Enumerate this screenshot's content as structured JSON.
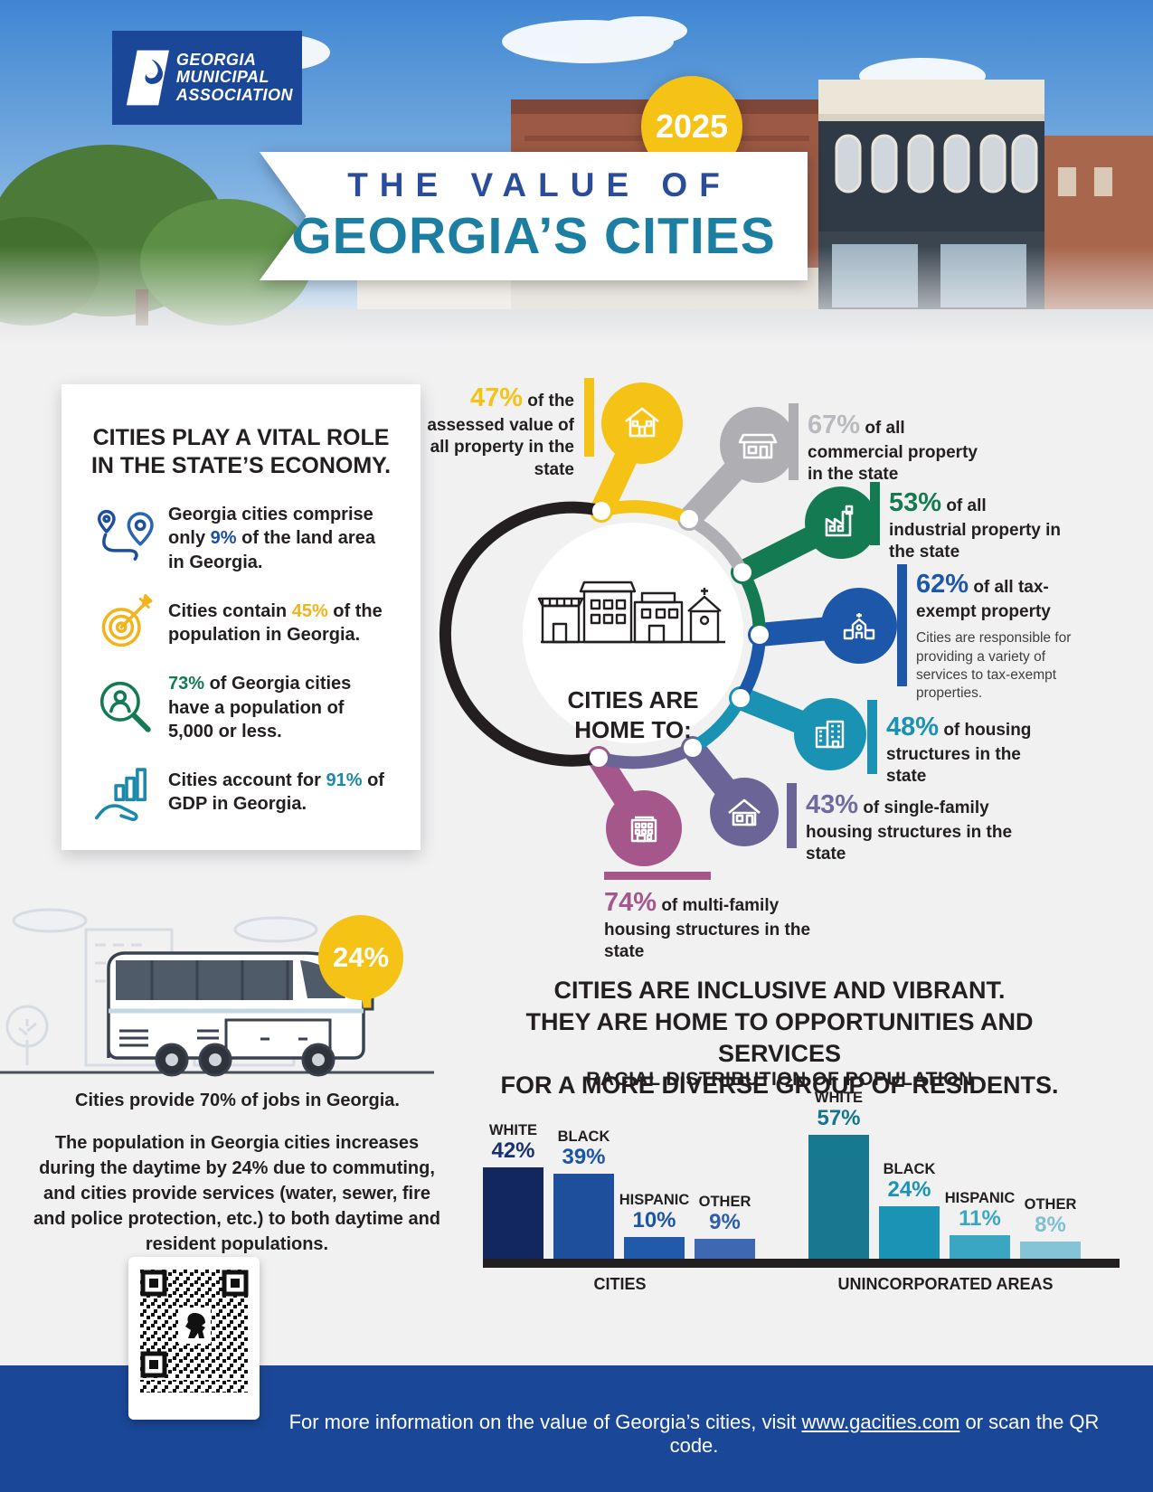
{
  "palette": {
    "brand_blue": "#1A4797",
    "yellow": "#F5C216",
    "gray": "#AFAFB3",
    "green": "#147A52",
    "blue": "#1D57A9",
    "teal": "#1992B4",
    "purple": "#6A6596",
    "mauve": "#A5578C",
    "ink": "#231F20",
    "background": "#F1F1F2",
    "title_teal": "#1C7FA2",
    "title_blue": "#2A4D9B"
  },
  "header": {
    "logo_lines": [
      "GEORGIA",
      "MUNICIPAL",
      "ASSOCIATION"
    ],
    "year_badge": "2025",
    "title_top": "THE VALUE OF",
    "title_main": "GEORGIA’S CITIES"
  },
  "vital_card": {
    "title_line1": "CITIES PLAY A VITAL ROLE",
    "title_line2": "IN THE STATE’S ECONOMY.",
    "items": [
      {
        "icon": "map-pins-icon",
        "color": "#1D4F9C",
        "pre": "Georgia cities comprise only ",
        "value": "9%",
        "post": " of the land area in Georgia."
      },
      {
        "icon": "target-icon",
        "color": "#F2B31B",
        "pre": "Cities contain ",
        "value": "45%",
        "post": " of the population in Georgia."
      },
      {
        "icon": "magnifier-person-icon",
        "color": "#147A52",
        "pre": "",
        "value": "73%",
        "post": " of Georgia cities have a population of 5,000 or less."
      },
      {
        "icon": "hand-chart-icon",
        "color": "#1B89A9",
        "pre": "Cities account for ",
        "value": "91%",
        "post": " of GDP in Georgia."
      }
    ]
  },
  "home_to": {
    "center_line1": "CITIES ARE",
    "center_line2": "HOME TO:",
    "bubbles": [
      {
        "icon": "house-icon",
        "value": "47%",
        "text": " of the assessed value of all property in the state",
        "color": "#F5C216"
      },
      {
        "icon": "store-icon",
        "value": "67%",
        "text": " of all commercial property in the state",
        "color": "#AFAFB3"
      },
      {
        "icon": "factory-icon",
        "value": "53%",
        "text": " of all industrial property in the state",
        "color": "#147A52"
      },
      {
        "icon": "church-icon",
        "value": "62%",
        "text": " of all tax-exempt property",
        "subtext": "Cities are responsible for providing a variety of services to tax-exempt properties.",
        "color": "#1D57A9"
      },
      {
        "icon": "apartment-icon",
        "value": "48%",
        "text": " of housing structures in the state",
        "color": "#1992B4"
      },
      {
        "icon": "single-family-house-icon",
        "value": "43%",
        "text": " of single-family housing structures in the state",
        "color": "#6A6596"
      },
      {
        "icon": "multi-family-building-icon",
        "value": "74%",
        "text": " of multi-family housing structures in the state",
        "color": "#A5578C"
      }
    ]
  },
  "commute": {
    "badge": "24%",
    "jobs": {
      "pre": "Cities provide ",
      "value": "70%",
      "post": " of jobs in Georgia."
    },
    "paragraph": {
      "pre": "The population in Georgia cities increases during the daytime by ",
      "value": "24%",
      "post": " due to commuting, and cities provide services (water, sewer, fire and police protection, etc.) to both daytime and resident populations."
    }
  },
  "inclusive": {
    "lines": [
      "CITIES ARE INCLUSIVE AND VIBRANT.",
      "THEY ARE HOME TO OPPORTUNITIES AND SERVICES",
      "FOR A MORE DIVERSE GROUP OF RESIDENTS."
    ]
  },
  "chart_data": {
    "type": "bar",
    "title": "RACIAL DISTRIBUTION OF POPULATION",
    "unit": "%",
    "ylim": [
      0,
      60
    ],
    "legend": "none",
    "groups": [
      {
        "label": "CITIES",
        "bars": [
          {
            "label": "WHITE",
            "value": 42,
            "bar_color": "#12275E",
            "value_color": "#16316E"
          },
          {
            "label": "BLACK",
            "value": 39,
            "bar_color": "#1D4F9C",
            "value_color": "#1D55A5"
          },
          {
            "label": "HISPANIC",
            "value": 10,
            "bar_color": "#205AA9",
            "value_color": "#1D55A5"
          },
          {
            "label": "OTHER",
            "value": 9,
            "bar_color": "#3E68B1",
            "value_color": "#2D5DAB"
          }
        ]
      },
      {
        "label": "UNINCORPORATED AREAS",
        "bars": [
          {
            "label": "WHITE",
            "value": 57,
            "bar_color": "#17788F",
            "value_color": "#15758C"
          },
          {
            "label": "BLACK",
            "value": 24,
            "bar_color": "#1A93B5",
            "value_color": "#1A93B5"
          },
          {
            "label": "HISPANIC",
            "value": 11,
            "bar_color": "#3AA6C2",
            "value_color": "#3AA6C2"
          },
          {
            "label": "OTHER",
            "value": 8,
            "bar_color": "#85C3D6",
            "value_color": "#7FBFD2"
          }
        ]
      }
    ]
  },
  "footer": {
    "pre": "For more information on the value of Georgia’s cities, visit ",
    "link": "www.gacities.com",
    "post": " or scan the QR code."
  }
}
